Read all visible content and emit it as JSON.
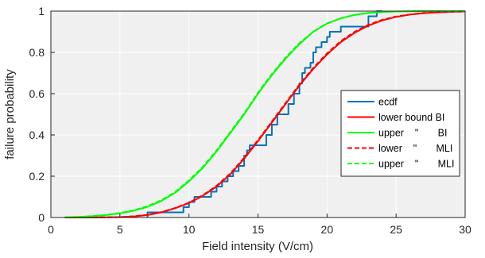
{
  "chart_data": {
    "type": "line",
    "title": "",
    "xlabel": "Field intensity (V/cm)",
    "ylabel": "failure probability",
    "xlim": [
      0,
      30
    ],
    "ylim": [
      0,
      1
    ],
    "xticks": [
      "0",
      "5",
      "10",
      "15",
      "20",
      "25",
      "30"
    ],
    "yticks": [
      "0",
      "0.2",
      "0.4",
      "0.6",
      "0.8",
      "1"
    ],
    "grid": true,
    "legend_position": "right",
    "colors": {
      "ecdf": "#0072BD",
      "red": "#FF0000",
      "green": "#00FF00",
      "plot_bg": "#F0F0F0"
    },
    "legend": [
      {
        "label": "ecdf",
        "style": "solid",
        "color": "#0072BD"
      },
      {
        "label": "lower bound BI",
        "style": "solid",
        "color": "#FF0000"
      },
      {
        "label": "upper    \"       BI",
        "style": "solid",
        "color": "#00FF00"
      },
      {
        "label": "lower    \"       MLI",
        "style": "dashed",
        "color": "#FF0000"
      },
      {
        "label": "upper    \"       MLI",
        "style": "dashed",
        "color": "#00FF00"
      }
    ],
    "series": [
      {
        "name": "ecdf",
        "style": "step",
        "color": "#0072BD",
        "points": [
          [
            7,
            0
          ],
          [
            7,
            0.025
          ],
          [
            9.6,
            0.025
          ],
          [
            9.6,
            0.05
          ],
          [
            10,
            0.05
          ],
          [
            10,
            0.075
          ],
          [
            10.4,
            0.075
          ],
          [
            10.4,
            0.1
          ],
          [
            11.6,
            0.1
          ],
          [
            11.6,
            0.125
          ],
          [
            12,
            0.125
          ],
          [
            12,
            0.15
          ],
          [
            12.4,
            0.15
          ],
          [
            12.4,
            0.175
          ],
          [
            12.8,
            0.175
          ],
          [
            12.8,
            0.2
          ],
          [
            13.2,
            0.2
          ],
          [
            13.2,
            0.225
          ],
          [
            13.6,
            0.225
          ],
          [
            13.6,
            0.25
          ],
          [
            14,
            0.25
          ],
          [
            14,
            0.3
          ],
          [
            14.2,
            0.3
          ],
          [
            14.2,
            0.325
          ],
          [
            14.4,
            0.325
          ],
          [
            14.4,
            0.35
          ],
          [
            15.6,
            0.35
          ],
          [
            15.6,
            0.4
          ],
          [
            16,
            0.4
          ],
          [
            16,
            0.45
          ],
          [
            16.4,
            0.45
          ],
          [
            16.4,
            0.5
          ],
          [
            17.2,
            0.5
          ],
          [
            17.2,
            0.55
          ],
          [
            17.6,
            0.55
          ],
          [
            17.6,
            0.6
          ],
          [
            18,
            0.6
          ],
          [
            18,
            0.65
          ],
          [
            18.2,
            0.65
          ],
          [
            18.2,
            0.7
          ],
          [
            18.4,
            0.7
          ],
          [
            18.4,
            0.725
          ],
          [
            18.8,
            0.725
          ],
          [
            18.8,
            0.75
          ],
          [
            19,
            0.75
          ],
          [
            19,
            0.8
          ],
          [
            19.2,
            0.8
          ],
          [
            19.2,
            0.825
          ],
          [
            19.6,
            0.825
          ],
          [
            19.6,
            0.85
          ],
          [
            20,
            0.85
          ],
          [
            20,
            0.875
          ],
          [
            20.2,
            0.875
          ],
          [
            20.2,
            0.9
          ],
          [
            21,
            0.9
          ],
          [
            21,
            0.925
          ],
          [
            23,
            0.925
          ],
          [
            23,
            0.975
          ],
          [
            23.6,
            0.975
          ],
          [
            23.6,
            1
          ],
          [
            24,
            1
          ]
        ]
      },
      {
        "name": "lower bound BI",
        "style": "solid",
        "color": "#FF0000",
        "x": [
          1,
          2,
          3,
          4,
          5,
          6,
          7,
          8,
          9,
          10,
          11,
          12,
          13,
          14,
          15,
          16,
          17,
          18,
          19,
          20,
          21,
          22,
          23,
          24,
          25,
          26,
          27,
          28,
          29,
          30
        ],
        "values": [
          0,
          0,
          0,
          0.001,
          0.002,
          0.005,
          0.012,
          0.025,
          0.045,
          0.07,
          0.105,
          0.15,
          0.21,
          0.285,
          0.37,
          0.46,
          0.55,
          0.64,
          0.72,
          0.79,
          0.85,
          0.895,
          0.93,
          0.955,
          0.972,
          0.983,
          0.99,
          0.994,
          0.997,
          0.998
        ]
      },
      {
        "name": "upper BI",
        "style": "solid",
        "color": "#00FF00",
        "x": [
          1,
          2,
          3,
          4,
          5,
          6,
          7,
          8,
          9,
          10,
          11,
          12,
          13,
          14,
          15,
          16,
          17,
          18,
          19,
          20,
          21,
          22,
          23,
          24,
          25,
          26,
          27,
          28,
          29,
          30
        ],
        "values": [
          0.001,
          0.003,
          0.006,
          0.012,
          0.02,
          0.033,
          0.052,
          0.08,
          0.12,
          0.175,
          0.24,
          0.32,
          0.41,
          0.5,
          0.6,
          0.69,
          0.77,
          0.84,
          0.9,
          0.94,
          0.965,
          0.982,
          0.991,
          0.996,
          0.998,
          0.999,
          1,
          1,
          1,
          1
        ]
      },
      {
        "name": "lower MLI",
        "style": "dashed",
        "color": "#FF0000",
        "x": [
          1,
          2,
          3,
          4,
          5,
          6,
          7,
          8,
          9,
          10,
          11,
          12,
          13,
          14,
          15,
          16,
          17,
          18,
          19,
          20,
          21,
          22,
          23,
          24,
          25,
          26,
          27,
          28,
          29,
          30
        ],
        "values": [
          0,
          0,
          0,
          0.001,
          0.002,
          0.006,
          0.013,
          0.026,
          0.046,
          0.072,
          0.108,
          0.154,
          0.214,
          0.29,
          0.375,
          0.465,
          0.555,
          0.645,
          0.725,
          0.795,
          0.855,
          0.9,
          0.934,
          0.958,
          0.974,
          0.984,
          0.991,
          0.995,
          0.997,
          0.998
        ]
      },
      {
        "name": "upper MLI",
        "style": "dashed",
        "color": "#00FF00",
        "x": [
          1,
          2,
          3,
          4,
          5,
          6,
          7,
          8,
          9,
          10,
          11,
          12,
          13,
          14,
          15,
          16,
          17,
          18,
          19,
          20,
          21,
          22,
          23,
          24,
          25,
          26,
          27,
          28,
          29,
          30
        ],
        "values": [
          0.001,
          0.003,
          0.007,
          0.013,
          0.022,
          0.035,
          0.055,
          0.084,
          0.124,
          0.18,
          0.245,
          0.325,
          0.415,
          0.505,
          0.605,
          0.695,
          0.775,
          0.845,
          0.9,
          0.94,
          0.965,
          0.982,
          0.991,
          0.996,
          0.998,
          0.999,
          1,
          1,
          1,
          1
        ]
      }
    ]
  }
}
